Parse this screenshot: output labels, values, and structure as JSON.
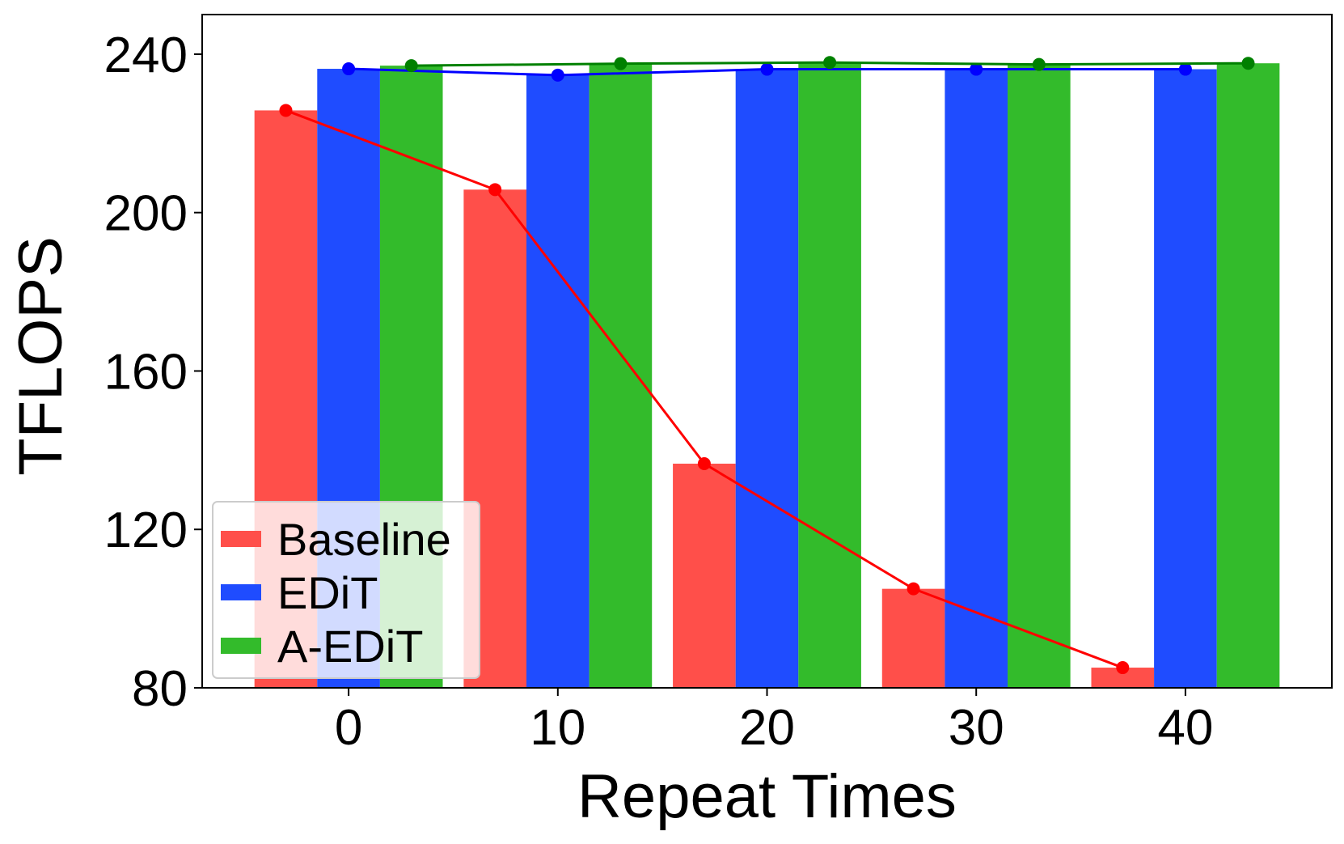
{
  "chart_data": {
    "type": "bar",
    "title": "",
    "xlabel": "Repeat Times",
    "ylabel": "TFLOPS",
    "categories": [
      0,
      10,
      20,
      30,
      40
    ],
    "xlim": [
      -7,
      47
    ],
    "ylim": [
      80,
      250
    ],
    "xticks": [
      0,
      10,
      20,
      30,
      40
    ],
    "yticks": [
      80,
      120,
      160,
      200,
      240
    ],
    "legend_position": "lower-left",
    "series": [
      {
        "name": "Baseline",
        "bar_color": "#ff4f4a",
        "line_color": "#ff0000",
        "values": [
          225.8,
          205.8,
          136.6,
          105.0,
          85.1
        ],
        "line_x": [
          -3,
          7,
          17,
          27,
          37
        ]
      },
      {
        "name": "EDiT",
        "bar_color": "#1f4cff",
        "line_color": "#0000ff",
        "values": [
          236.3,
          234.7,
          236.2,
          236.2,
          236.2
        ],
        "line_x": [
          0,
          10,
          20,
          30,
          40
        ]
      },
      {
        "name": "A-EDiT",
        "bar_color": "#33bb2b",
        "line_color": "#008000",
        "values": [
          237.1,
          237.6,
          237.9,
          237.4,
          237.7
        ],
        "line_x": [
          3,
          13,
          23,
          33,
          43
        ]
      }
    ]
  }
}
